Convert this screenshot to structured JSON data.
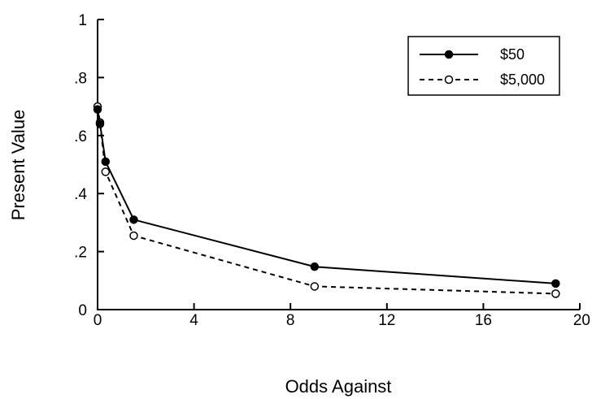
{
  "chart_data": {
    "type": "line",
    "title": "",
    "xlabel": "Odds Against",
    "ylabel": "Present Value",
    "xlim": [
      0,
      20
    ],
    "ylim": [
      0,
      1
    ],
    "x_ticks": [
      0,
      4,
      8,
      12,
      16,
      20
    ],
    "x_tick_labels": [
      "0",
      "4",
      "8",
      "12",
      "16",
      "20"
    ],
    "y_ticks": [
      0,
      0.2,
      0.4,
      0.6,
      0.8,
      1
    ],
    "y_tick_labels": [
      "0",
      ".2",
      ".4",
      ".6",
      ".8",
      "1"
    ],
    "grid": false,
    "legend_position": "top-right",
    "series": [
      {
        "name": "$50",
        "marker": "filled-circle",
        "line_style": "solid",
        "color": "#000000",
        "points": [
          {
            "x": 0.0,
            "y": 0.69
          },
          {
            "x": 0.1,
            "y": 0.64
          },
          {
            "x": 0.33,
            "y": 0.51
          },
          {
            "x": 1.5,
            "y": 0.31
          },
          {
            "x": 9.0,
            "y": 0.148
          },
          {
            "x": 19.0,
            "y": 0.09
          }
        ]
      },
      {
        "name": "$5,000",
        "marker": "open-circle",
        "line_style": "dashed",
        "color": "#000000",
        "points": [
          {
            "x": 0.0,
            "y": 0.7
          },
          {
            "x": 0.1,
            "y": 0.645
          },
          {
            "x": 0.33,
            "y": 0.475
          },
          {
            "x": 1.5,
            "y": 0.255
          },
          {
            "x": 9.0,
            "y": 0.08
          },
          {
            "x": 19.0,
            "y": 0.055
          }
        ]
      }
    ]
  }
}
